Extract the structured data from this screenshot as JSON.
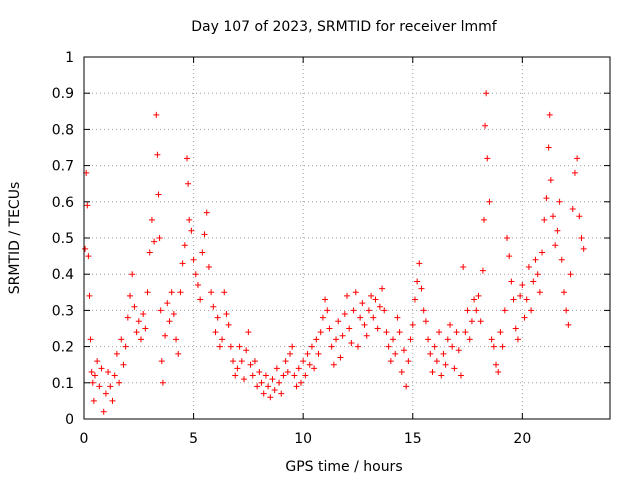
{
  "chart_data": {
    "type": "scatter",
    "title": "Day 107 of 2023, SRMTID for receiver lmmf",
    "xlabel": "GPS time / hours",
    "ylabel": "SRMTID / TECUs",
    "xlim": [
      0,
      24
    ],
    "ylim": [
      0,
      1
    ],
    "x_ticks": [
      0,
      5,
      10,
      15,
      20
    ],
    "x_tick_labels": [
      "0",
      "5",
      "10",
      "15",
      "20"
    ],
    "y_ticks": [
      0,
      0.1,
      0.2,
      0.3,
      0.4,
      0.5,
      0.6,
      0.7,
      0.8,
      0.9,
      1
    ],
    "y_tick_labels": [
      "0",
      "0.1",
      "0.2",
      "0.3",
      "0.4",
      "0.5",
      "0.6",
      "0.7",
      "0.8",
      "0.9",
      "1"
    ],
    "grid": true,
    "marker": "plus",
    "color": "#ff0000",
    "series": [
      {
        "name": "SRMTID",
        "points": [
          [
            0.05,
            0.47
          ],
          [
            0.1,
            0.68
          ],
          [
            0.15,
            0.59
          ],
          [
            0.2,
            0.45
          ],
          [
            0.25,
            0.34
          ],
          [
            0.3,
            0.22
          ],
          [
            0.35,
            0.13
          ],
          [
            0.4,
            0.1
          ],
          [
            0.45,
            0.05
          ],
          [
            0.5,
            0.12
          ],
          [
            0.6,
            0.16
          ],
          [
            0.7,
            0.09
          ],
          [
            0.8,
            0.14
          ],
          [
            0.9,
            0.02
          ],
          [
            1.0,
            0.07
          ],
          [
            1.1,
            0.13
          ],
          [
            1.2,
            0.09
          ],
          [
            1.3,
            0.05
          ],
          [
            1.4,
            0.12
          ],
          [
            1.5,
            0.18
          ],
          [
            1.6,
            0.1
          ],
          [
            1.7,
            0.22
          ],
          [
            1.8,
            0.15
          ],
          [
            1.9,
            0.2
          ],
          [
            2.0,
            0.28
          ],
          [
            2.1,
            0.34
          ],
          [
            2.2,
            0.4
          ],
          [
            2.3,
            0.31
          ],
          [
            2.4,
            0.24
          ],
          [
            2.5,
            0.27
          ],
          [
            2.6,
            0.22
          ],
          [
            2.7,
            0.29
          ],
          [
            2.8,
            0.25
          ],
          [
            2.9,
            0.35
          ],
          [
            3.0,
            0.46
          ],
          [
            3.1,
            0.55
          ],
          [
            3.2,
            0.49
          ],
          [
            3.3,
            0.84
          ],
          [
            3.35,
            0.73
          ],
          [
            3.4,
            0.62
          ],
          [
            3.45,
            0.5
          ],
          [
            3.5,
            0.3
          ],
          [
            3.55,
            0.16
          ],
          [
            3.6,
            0.1
          ],
          [
            3.7,
            0.23
          ],
          [
            3.8,
            0.32
          ],
          [
            3.9,
            0.27
          ],
          [
            4.0,
            0.35
          ],
          [
            4.1,
            0.29
          ],
          [
            4.2,
            0.22
          ],
          [
            4.3,
            0.18
          ],
          [
            4.4,
            0.35
          ],
          [
            4.5,
            0.43
          ],
          [
            4.6,
            0.48
          ],
          [
            4.7,
            0.72
          ],
          [
            4.75,
            0.65
          ],
          [
            4.8,
            0.55
          ],
          [
            4.9,
            0.52
          ],
          [
            5.0,
            0.44
          ],
          [
            5.1,
            0.4
          ],
          [
            5.2,
            0.37
          ],
          [
            5.3,
            0.33
          ],
          [
            5.4,
            0.46
          ],
          [
            5.5,
            0.51
          ],
          [
            5.6,
            0.57
          ],
          [
            5.7,
            0.42
          ],
          [
            5.8,
            0.35
          ],
          [
            5.9,
            0.31
          ],
          [
            6.0,
            0.24
          ],
          [
            6.1,
            0.28
          ],
          [
            6.2,
            0.2
          ],
          [
            6.3,
            0.22
          ],
          [
            6.4,
            0.35
          ],
          [
            6.5,
            0.29
          ],
          [
            6.6,
            0.26
          ],
          [
            6.7,
            0.2
          ],
          [
            6.8,
            0.16
          ],
          [
            6.9,
            0.12
          ],
          [
            7.0,
            0.14
          ],
          [
            7.1,
            0.2
          ],
          [
            7.2,
            0.16
          ],
          [
            7.3,
            0.11
          ],
          [
            7.4,
            0.19
          ],
          [
            7.5,
            0.24
          ],
          [
            7.6,
            0.15
          ],
          [
            7.7,
            0.12
          ],
          [
            7.8,
            0.16
          ],
          [
            7.9,
            0.09
          ],
          [
            8.0,
            0.13
          ],
          [
            8.1,
            0.1
          ],
          [
            8.2,
            0.07
          ],
          [
            8.3,
            0.12
          ],
          [
            8.4,
            0.09
          ],
          [
            8.5,
            0.06
          ],
          [
            8.6,
            0.11
          ],
          [
            8.7,
            0.08
          ],
          [
            8.8,
            0.14
          ],
          [
            8.9,
            0.1
          ],
          [
            9.0,
            0.07
          ],
          [
            9.1,
            0.12
          ],
          [
            9.2,
            0.16
          ],
          [
            9.3,
            0.13
          ],
          [
            9.4,
            0.18
          ],
          [
            9.5,
            0.2
          ],
          [
            9.6,
            0.12
          ],
          [
            9.7,
            0.09
          ],
          [
            9.8,
            0.14
          ],
          [
            9.9,
            0.1
          ],
          [
            10.0,
            0.16
          ],
          [
            10.1,
            0.12
          ],
          [
            10.2,
            0.18
          ],
          [
            10.3,
            0.15
          ],
          [
            10.4,
            0.2
          ],
          [
            10.5,
            0.14
          ],
          [
            10.6,
            0.22
          ],
          [
            10.7,
            0.18
          ],
          [
            10.8,
            0.24
          ],
          [
            10.9,
            0.28
          ],
          [
            11.0,
            0.33
          ],
          [
            11.1,
            0.3
          ],
          [
            11.2,
            0.25
          ],
          [
            11.3,
            0.2
          ],
          [
            11.4,
            0.15
          ],
          [
            11.5,
            0.22
          ],
          [
            11.6,
            0.27
          ],
          [
            11.7,
            0.17
          ],
          [
            11.8,
            0.23
          ],
          [
            11.9,
            0.29
          ],
          [
            12.0,
            0.34
          ],
          [
            12.1,
            0.25
          ],
          [
            12.2,
            0.21
          ],
          [
            12.3,
            0.3
          ],
          [
            12.4,
            0.35
          ],
          [
            12.5,
            0.2
          ],
          [
            12.6,
            0.28
          ],
          [
            12.7,
            0.32
          ],
          [
            12.8,
            0.26
          ],
          [
            12.9,
            0.23
          ],
          [
            13.0,
            0.3
          ],
          [
            13.1,
            0.34
          ],
          [
            13.2,
            0.28
          ],
          [
            13.3,
            0.33
          ],
          [
            13.4,
            0.25
          ],
          [
            13.5,
            0.31
          ],
          [
            13.6,
            0.36
          ],
          [
            13.7,
            0.3
          ],
          [
            13.8,
            0.24
          ],
          [
            13.9,
            0.2
          ],
          [
            14.0,
            0.16
          ],
          [
            14.1,
            0.22
          ],
          [
            14.2,
            0.18
          ],
          [
            14.3,
            0.28
          ],
          [
            14.4,
            0.24
          ],
          [
            14.5,
            0.13
          ],
          [
            14.6,
            0.19
          ],
          [
            14.7,
            0.09
          ],
          [
            14.8,
            0.16
          ],
          [
            14.9,
            0.22
          ],
          [
            15.0,
            0.26
          ],
          [
            15.1,
            0.33
          ],
          [
            15.2,
            0.38
          ],
          [
            15.3,
            0.43
          ],
          [
            15.4,
            0.36
          ],
          [
            15.5,
            0.3
          ],
          [
            15.6,
            0.27
          ],
          [
            15.7,
            0.22
          ],
          [
            15.8,
            0.18
          ],
          [
            15.9,
            0.13
          ],
          [
            16.0,
            0.2
          ],
          [
            16.1,
            0.16
          ],
          [
            16.2,
            0.24
          ],
          [
            16.3,
            0.12
          ],
          [
            16.4,
            0.18
          ],
          [
            16.5,
            0.15
          ],
          [
            16.6,
            0.22
          ],
          [
            16.7,
            0.26
          ],
          [
            16.8,
            0.2
          ],
          [
            16.9,
            0.14
          ],
          [
            17.0,
            0.24
          ],
          [
            17.1,
            0.19
          ],
          [
            17.2,
            0.12
          ],
          [
            17.3,
            0.42
          ],
          [
            17.4,
            0.24
          ],
          [
            17.5,
            0.3
          ],
          [
            17.6,
            0.22
          ],
          [
            17.7,
            0.27
          ],
          [
            17.8,
            0.33
          ],
          [
            17.9,
            0.3
          ],
          [
            18.0,
            0.34
          ],
          [
            18.1,
            0.27
          ],
          [
            18.2,
            0.41
          ],
          [
            18.25,
            0.55
          ],
          [
            18.3,
            0.81
          ],
          [
            18.35,
            0.9
          ],
          [
            18.4,
            0.72
          ],
          [
            18.5,
            0.6
          ],
          [
            18.6,
            0.22
          ],
          [
            18.7,
            0.2
          ],
          [
            18.8,
            0.15
          ],
          [
            18.9,
            0.13
          ],
          [
            19.0,
            0.24
          ],
          [
            19.1,
            0.2
          ],
          [
            19.2,
            0.3
          ],
          [
            19.3,
            0.5
          ],
          [
            19.4,
            0.45
          ],
          [
            19.5,
            0.38
          ],
          [
            19.6,
            0.33
          ],
          [
            19.7,
            0.25
          ],
          [
            19.8,
            0.22
          ],
          [
            19.9,
            0.34
          ],
          [
            20.0,
            0.37
          ],
          [
            20.1,
            0.28
          ],
          [
            20.2,
            0.33
          ],
          [
            20.3,
            0.42
          ],
          [
            20.4,
            0.3
          ],
          [
            20.5,
            0.38
          ],
          [
            20.6,
            0.44
          ],
          [
            20.7,
            0.4
          ],
          [
            20.8,
            0.35
          ],
          [
            20.9,
            0.46
          ],
          [
            21.0,
            0.55
          ],
          [
            21.1,
            0.61
          ],
          [
            21.2,
            0.75
          ],
          [
            21.25,
            0.84
          ],
          [
            21.3,
            0.66
          ],
          [
            21.4,
            0.56
          ],
          [
            21.5,
            0.48
          ],
          [
            21.6,
            0.52
          ],
          [
            21.7,
            0.6
          ],
          [
            21.8,
            0.44
          ],
          [
            21.9,
            0.35
          ],
          [
            22.0,
            0.3
          ],
          [
            22.1,
            0.26
          ],
          [
            22.2,
            0.4
          ],
          [
            22.3,
            0.58
          ],
          [
            22.4,
            0.68
          ],
          [
            22.5,
            0.72
          ],
          [
            22.6,
            0.56
          ],
          [
            22.7,
            0.5
          ],
          [
            22.8,
            0.47
          ]
        ]
      }
    ]
  }
}
